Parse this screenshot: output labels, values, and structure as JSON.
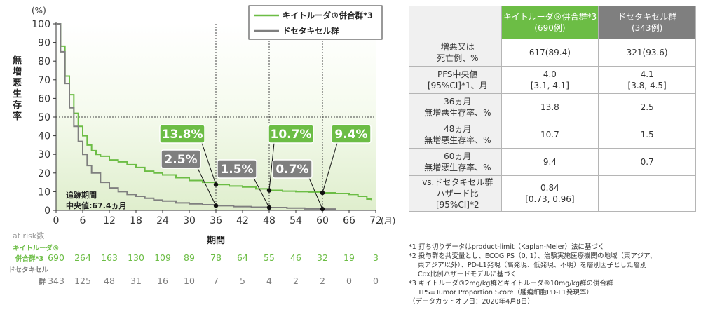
{
  "chart_data": {
    "type": "line",
    "y_unit": "(%)",
    "x_unit": "(月)",
    "xlabel": "期間",
    "ylabel": "無増悪生存率",
    "xlim": [
      0,
      72
    ],
    "ylim": [
      0,
      100
    ],
    "x_ticks": [
      0,
      6,
      12,
      18,
      24,
      30,
      36,
      42,
      48,
      54,
      60,
      66,
      72
    ],
    "y_ticks": [
      0,
      10,
      20,
      30,
      40,
      50,
      60,
      70,
      80,
      90,
      100
    ],
    "reference_lines": {
      "y": 50,
      "x": [
        36,
        48,
        60
      ]
    },
    "legend_position": "top-right",
    "series": [
      {
        "name": "キイトルーダ®併合群*3",
        "color": "#6cbd45",
        "x": [
          0,
          1,
          2,
          3,
          4,
          5,
          6,
          7,
          8,
          9,
          10,
          12,
          14,
          16,
          18,
          20,
          22,
          24,
          27,
          30,
          33,
          36,
          39,
          42,
          45,
          48,
          51,
          54,
          57,
          60,
          63,
          66,
          68,
          70,
          71
        ],
        "y": [
          100,
          88,
          72,
          62,
          52,
          45,
          40,
          35,
          32,
          30,
          29,
          27,
          26,
          24.5,
          23,
          21,
          20,
          19,
          17.5,
          16,
          15,
          13.8,
          13,
          12.5,
          11.5,
          10.7,
          10.3,
          10,
          9.8,
          9.4,
          9,
          8.5,
          7.5,
          6,
          5.5
        ]
      },
      {
        "name": "ドセタキセル群",
        "color": "#7f7f7f",
        "x": [
          0,
          1,
          2,
          3,
          4,
          5,
          6,
          7,
          8,
          10,
          12,
          14,
          16,
          18,
          20,
          22,
          24,
          27,
          30,
          33,
          36,
          40,
          44,
          48,
          52,
          56,
          60,
          63
        ],
        "y": [
          100,
          85,
          68,
          55,
          45,
          37,
          30,
          24,
          20,
          15,
          12,
          10,
          8.5,
          7.5,
          6.5,
          5.5,
          5,
          4,
          3.5,
          3,
          2.5,
          2,
          1.7,
          1.5,
          1.2,
          0.8,
          0.7,
          0.7
        ]
      }
    ],
    "callouts": [
      {
        "x": 36,
        "value": 13.8,
        "label": "13.8%",
        "series": 0,
        "color": "#6cbd45"
      },
      {
        "x": 48,
        "value": 10.7,
        "label": "10.7%",
        "series": 0,
        "color": "#6cbd45"
      },
      {
        "x": 60,
        "value": 9.4,
        "label": "9.4%",
        "series": 0,
        "color": "#6cbd45"
      },
      {
        "x": 36,
        "value": 2.5,
        "label": "2.5%",
        "series": 1,
        "color": "#7f7f7f"
      },
      {
        "x": 48,
        "value": 1.5,
        "label": "1.5%",
        "series": 1,
        "color": "#7f7f7f"
      },
      {
        "x": 60,
        "value": 0.7,
        "label": "0.7%",
        "series": 1,
        "color": "#7f7f7f"
      }
    ],
    "followup": {
      "line1": "追跡期間",
      "line2": "中央値:67.4ヵ月"
    },
    "at_risk": {
      "title": "at risk数",
      "rows": [
        {
          "label1": "キイトルーダ®",
          "label2": "併合群*3",
          "color": "#6cbd45",
          "values": [
            "690",
            "264",
            "163",
            "130",
            "109",
            "89",
            "78",
            "64",
            "55",
            "46",
            "32",
            "19",
            "3"
          ]
        },
        {
          "label1": "ドセタキセル",
          "label2": "群",
          "color": "#7f7f7f",
          "values": [
            "343",
            "125",
            "48",
            "31",
            "16",
            "10",
            "7",
            "5",
            "4",
            "2",
            "2",
            "0",
            "0"
          ]
        }
      ]
    }
  },
  "table": {
    "header": [
      {
        "line1": "キイトルーダ®併合群*3",
        "line2": "(690例)"
      },
      {
        "line1": "ドセタキセル群",
        "line2": "(343例)"
      }
    ],
    "rows": [
      {
        "label": [
          "増悪又は",
          "死亡例、%"
        ],
        "k": [
          "617(89.4)"
        ],
        "d": [
          "321(93.6)"
        ]
      },
      {
        "label": [
          "PFS中央値",
          "[95%CI]*1、月"
        ],
        "k": [
          "4.0",
          "[3.1, 4.1]"
        ],
        "d": [
          "4.1",
          "[3.8, 4.5]"
        ]
      },
      {
        "label": [
          "36ヵ月",
          "無増悪生存率、%"
        ],
        "k": [
          "13.8"
        ],
        "d": [
          "2.5"
        ]
      },
      {
        "label": [
          "48ヵ月",
          "無増悪生存率、%"
        ],
        "k": [
          "10.7"
        ],
        "d": [
          "1.5"
        ]
      },
      {
        "label": [
          "60ヵ月",
          "無増悪生存率、%"
        ],
        "k": [
          "9.4"
        ],
        "d": [
          "0.7"
        ]
      },
      {
        "label": [
          "vs.ドセタキセル群",
          "ハザード比",
          "[95%CI]*2"
        ],
        "k": [
          "0.84",
          "[0.73, 0.96]"
        ],
        "d": [
          "―"
        ]
      }
    ]
  },
  "notes": [
    "*1 打ち切りデータはproduct-limit（Kaplan-Meier）法に基づく",
    "*2 投与群を共変量とし、ECOG PS（0, 1）、治験実施医療機関の地域（東アジア、",
    "東アジア以外）、PD-L1発現（高発現、低発現、不明）を層別因子とした層別",
    "Cox比例ハザードモデルに基づく",
    "*3 キイトルーダ®2mg/kg群とキイトルーダ®10mg/kg群の併合群",
    "TPS=Tumor Proportion Score（腫瘍細胞PD-L1発現率）",
    "（データカットオフ日：2020年4月8日）"
  ]
}
